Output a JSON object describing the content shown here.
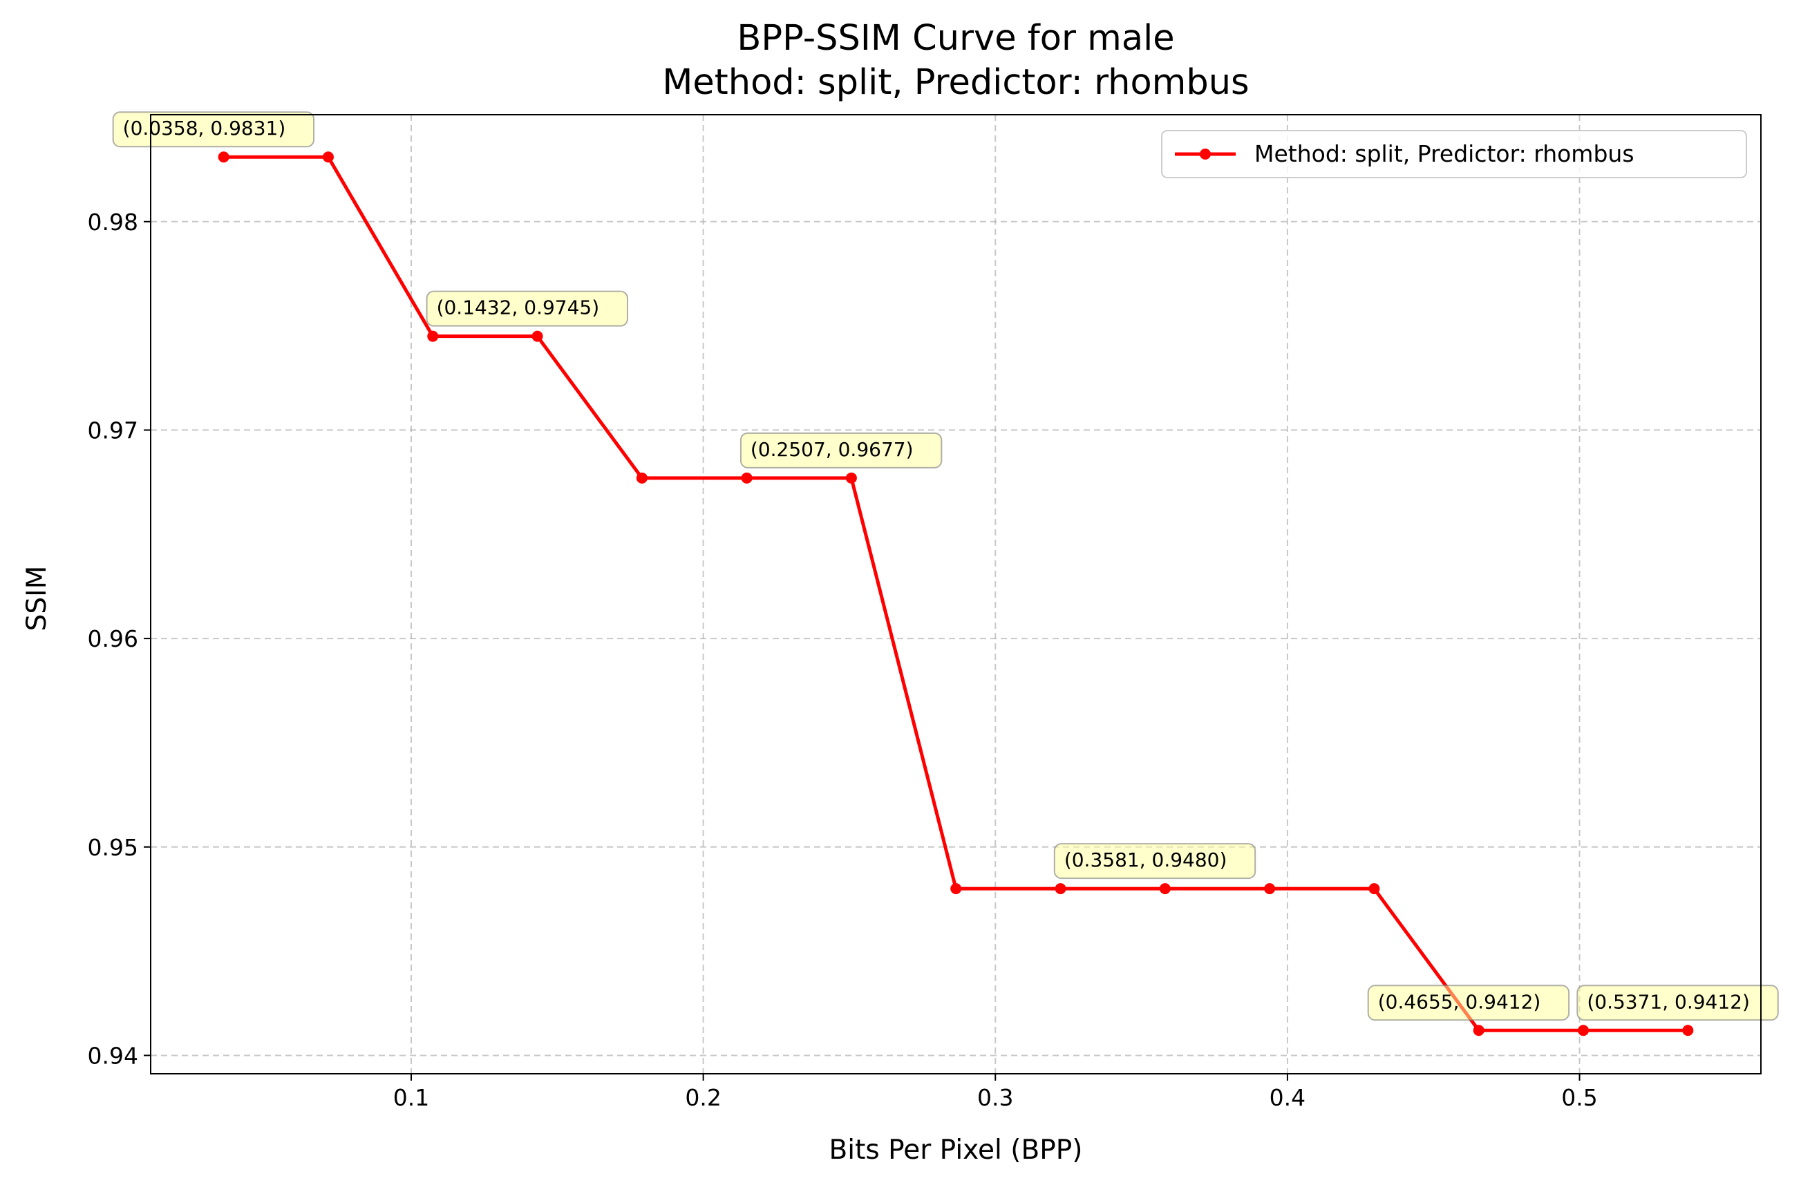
{
  "chart_data": {
    "type": "line",
    "title": "BPP-SSIM Curve for male",
    "subtitle": "Method: split, Predictor: rhombus",
    "xlabel": "Bits Per Pixel (BPP)",
    "ylabel": "SSIM",
    "xlim": [
      0.0108,
      0.5621
    ],
    "ylim": [
      0.93912,
      0.98513
    ],
    "xticks": [
      0.1,
      0.2,
      0.3,
      0.4,
      0.5
    ],
    "xtick_labels": [
      "0.1",
      "0.2",
      "0.3",
      "0.4",
      "0.5"
    ],
    "yticks": [
      0.94,
      0.95,
      0.96,
      0.97,
      0.98
    ],
    "ytick_labels": [
      "0.94",
      "0.95",
      "0.96",
      "0.97",
      "0.98"
    ],
    "grid": true,
    "legend_position": "top-right",
    "series": [
      {
        "name": "Method: split, Predictor: rhombus",
        "color": "#ff0000",
        "marker": "circle",
        "x": [
          0.0358,
          0.0716,
          0.1074,
          0.1432,
          0.179,
          0.2149,
          0.2507,
          0.2865,
          0.3223,
          0.3581,
          0.3939,
          0.4297,
          0.4655,
          0.5013,
          0.5371
        ],
        "y": [
          0.9831,
          0.9831,
          0.9745,
          0.9745,
          0.9677,
          0.9677,
          0.9677,
          0.948,
          0.948,
          0.948,
          0.948,
          0.948,
          0.9412,
          0.9412,
          0.9412
        ]
      }
    ],
    "annotations": [
      {
        "x": 0.0358,
        "y": 0.9831,
        "text": "(0.0358, 0.9831)"
      },
      {
        "x": 0.1432,
        "y": 0.9745,
        "text": "(0.1432, 0.9745)"
      },
      {
        "x": 0.2507,
        "y": 0.9677,
        "text": "(0.2507, 0.9677)"
      },
      {
        "x": 0.3581,
        "y": 0.948,
        "text": "(0.3581, 0.9480)"
      },
      {
        "x": 0.4655,
        "y": 0.9412,
        "text": "(0.4655, 0.9412)"
      },
      {
        "x": 0.5371,
        "y": 0.9412,
        "text": "(0.5371, 0.9412)"
      }
    ],
    "annotation_box_color": "#ffff99"
  }
}
